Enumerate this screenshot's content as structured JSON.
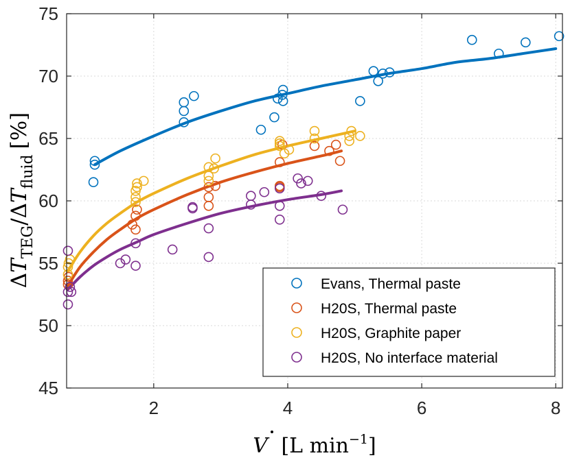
{
  "chart_data": {
    "type": "scatter",
    "xlabel_parts": {
      "symbol": "V",
      "unit": "[L min",
      "exp": "−1",
      "close": "]"
    },
    "ylabel_parts": {
      "delta": "Δ",
      "T": "T",
      "sub_teg": "TEG",
      "slash": "/",
      "delta2": "Δ",
      "T2": "T",
      "sub_fluid": "fluid",
      "unit": "[%]"
    },
    "xlim": [
      0.7,
      8.1
    ],
    "ylim": [
      45,
      75
    ],
    "xticks": [
      2,
      4,
      6,
      8
    ],
    "yticks": [
      45,
      50,
      55,
      60,
      65,
      70,
      75
    ],
    "xtick_labels": [
      "2",
      "4",
      "6",
      "8"
    ],
    "ytick_labels": [
      "45",
      "50",
      "55",
      "60",
      "65",
      "70",
      "75"
    ],
    "grid": true,
    "legend_position": "bottom-right",
    "series": [
      {
        "name": "Evans, Thermal paste",
        "color": "#0072BD",
        "points": [
          [
            1.12,
            63.2
          ],
          [
            1.12,
            62.9
          ],
          [
            1.1,
            61.5
          ],
          [
            2.45,
            67.9
          ],
          [
            2.45,
            67.2
          ],
          [
            2.45,
            66.3
          ],
          [
            2.6,
            68.4
          ],
          [
            3.6,
            65.7
          ],
          [
            3.8,
            66.7
          ],
          [
            3.85,
            68.2
          ],
          [
            3.92,
            68.5
          ],
          [
            3.93,
            68.9
          ],
          [
            3.93,
            68.0
          ],
          [
            5.08,
            68.0
          ],
          [
            5.28,
            70.4
          ],
          [
            5.35,
            69.6
          ],
          [
            5.42,
            70.2
          ],
          [
            5.52,
            70.3
          ],
          [
            6.75,
            72.9
          ],
          [
            7.15,
            71.8
          ],
          [
            7.55,
            72.7
          ],
          [
            8.05,
            73.2
          ]
        ],
        "fit": [
          [
            1.12,
            62.9
          ],
          [
            1.5,
            64.0
          ],
          [
            2.0,
            65.2
          ],
          [
            2.5,
            66.3
          ],
          [
            3.0,
            67.2
          ],
          [
            3.5,
            68.0
          ],
          [
            4.0,
            68.6
          ],
          [
            4.5,
            69.2
          ],
          [
            5.0,
            69.7
          ],
          [
            5.5,
            70.2
          ],
          [
            6.0,
            70.6
          ],
          [
            6.5,
            71.1
          ],
          [
            7.0,
            71.4
          ],
          [
            7.5,
            71.8
          ],
          [
            8.0,
            72.2
          ]
        ]
      },
      {
        "name": "H20S, Thermal paste",
        "color": "#D95319",
        "points": [
          [
            0.72,
            53.3
          ],
          [
            0.72,
            53.6
          ],
          [
            0.73,
            53.9
          ],
          [
            1.68,
            58.1
          ],
          [
            1.73,
            57.7
          ],
          [
            1.73,
            58.8
          ],
          [
            1.75,
            59.3
          ],
          [
            2.82,
            60.3
          ],
          [
            2.82,
            59.6
          ],
          [
            2.82,
            61.1
          ],
          [
            2.92,
            61.2
          ],
          [
            3.88,
            61.1
          ],
          [
            3.88,
            61.2
          ],
          [
            3.88,
            63.1
          ],
          [
            3.92,
            64.5
          ],
          [
            4.4,
            64.4
          ],
          [
            4.62,
            64.0
          ],
          [
            4.72,
            64.5
          ],
          [
            4.78,
            63.2
          ]
        ],
        "fit": [
          [
            0.72,
            53.2
          ],
          [
            0.9,
            54.7
          ],
          [
            1.1,
            55.9
          ],
          [
            1.3,
            56.9
          ],
          [
            1.5,
            57.7
          ],
          [
            1.75,
            58.6
          ],
          [
            2.0,
            59.3
          ],
          [
            2.5,
            60.5
          ],
          [
            3.0,
            61.5
          ],
          [
            3.5,
            62.3
          ],
          [
            4.0,
            63.0
          ],
          [
            4.5,
            63.6
          ],
          [
            4.8,
            64.0
          ]
        ]
      },
      {
        "name": "H20S, Graphite paper",
        "color": "#EDB120",
        "points": [
          [
            0.72,
            54.1
          ],
          [
            0.72,
            54.7
          ],
          [
            0.73,
            55.0
          ],
          [
            0.75,
            55.3
          ],
          [
            1.73,
            59.9
          ],
          [
            1.73,
            60.3
          ],
          [
            1.73,
            60.8
          ],
          [
            1.75,
            61.1
          ],
          [
            1.75,
            61.4
          ],
          [
            1.85,
            61.6
          ],
          [
            2.82,
            61.6
          ],
          [
            2.82,
            62.0
          ],
          [
            2.82,
            62.7
          ],
          [
            2.9,
            62.6
          ],
          [
            2.92,
            63.4
          ],
          [
            3.88,
            64.4
          ],
          [
            3.88,
            64.6
          ],
          [
            3.88,
            64.8
          ],
          [
            3.95,
            63.8
          ],
          [
            4.02,
            64.1
          ],
          [
            4.4,
            65.0
          ],
          [
            4.4,
            65.6
          ],
          [
            4.92,
            64.8
          ],
          [
            4.92,
            65.2
          ],
          [
            4.95,
            65.6
          ],
          [
            5.08,
            65.2
          ]
        ],
        "fit": [
          [
            0.72,
            54.4
          ],
          [
            0.9,
            55.9
          ],
          [
            1.1,
            57.2
          ],
          [
            1.3,
            58.2
          ],
          [
            1.5,
            59.0
          ],
          [
            1.75,
            59.9
          ],
          [
            2.0,
            60.6
          ],
          [
            2.5,
            61.8
          ],
          [
            3.0,
            62.8
          ],
          [
            3.5,
            63.7
          ],
          [
            4.0,
            64.4
          ],
          [
            4.5,
            65.0
          ],
          [
            5.0,
            65.6
          ]
        ]
      },
      {
        "name": "H20S, No interface material",
        "color": "#7E2F8E",
        "points": [
          [
            0.72,
            51.7
          ],
          [
            0.72,
            52.7
          ],
          [
            0.75,
            53.1
          ],
          [
            0.77,
            52.7
          ],
          [
            0.72,
            56.0
          ],
          [
            1.5,
            55.0
          ],
          [
            1.58,
            55.3
          ],
          [
            1.73,
            54.8
          ],
          [
            1.73,
            56.6
          ],
          [
            2.28,
            56.1
          ],
          [
            2.58,
            59.4
          ],
          [
            2.58,
            59.5
          ],
          [
            2.82,
            57.8
          ],
          [
            2.82,
            55.5
          ],
          [
            3.45,
            60.4
          ],
          [
            3.45,
            59.7
          ],
          [
            3.65,
            60.7
          ],
          [
            3.88,
            58.5
          ],
          [
            3.88,
            59.6
          ],
          [
            3.88,
            61.0
          ],
          [
            4.15,
            61.8
          ],
          [
            4.2,
            61.4
          ],
          [
            4.3,
            61.6
          ],
          [
            4.5,
            60.4
          ],
          [
            4.82,
            59.3
          ]
        ],
        "fit": [
          [
            0.72,
            52.9
          ],
          [
            0.9,
            53.9
          ],
          [
            1.1,
            54.8
          ],
          [
            1.3,
            55.5
          ],
          [
            1.5,
            56.1
          ],
          [
            1.75,
            56.7
          ],
          [
            2.0,
            57.3
          ],
          [
            2.5,
            58.2
          ],
          [
            3.0,
            59.0
          ],
          [
            3.5,
            59.6
          ],
          [
            4.0,
            60.1
          ],
          [
            4.5,
            60.5
          ],
          [
            4.8,
            60.8
          ]
        ]
      }
    ]
  }
}
